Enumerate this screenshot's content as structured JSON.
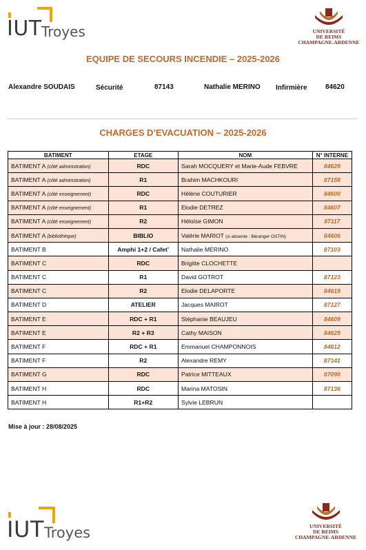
{
  "header": {
    "iut_logo_text": "IUT",
    "iut_city": "Troyes",
    "university_line1": "UNIVERSITÉ",
    "university_line2": "DE REIMS",
    "university_line3": "CHAMPAGNE-ARDENNE"
  },
  "section1": {
    "title": "EQUIPE DE SECOURS INCENDIE – 2025-2026"
  },
  "contacts": [
    {
      "name": "Alexandre SOUDAIS",
      "role": "Sécurité",
      "phone": "87143"
    },
    {
      "name": "Nathalie MERINO",
      "role": "Infirmière",
      "phone": "84620"
    }
  ],
  "section2": {
    "title": "CHARGES D’EVACUATION – 2025-2026"
  },
  "table": {
    "headers": [
      "BATIMENT",
      "ETAGE",
      "NOM",
      "N° INTERNE"
    ],
    "rows": [
      {
        "bat": "BATIMENT A",
        "sub": "(côté administration)",
        "etage": "RDC",
        "nom": "Sarah MOCQUERY et Marie-Aude FEBVRE",
        "note": "",
        "num": "84629"
      },
      {
        "bat": "BATIMENT A",
        "sub": "(côté administration)",
        "etage": "R1",
        "nom": "Brahim MACHKOURI",
        "note": "",
        "num": "87158"
      },
      {
        "bat": "BATIMENT A",
        "sub": "(côté enseignement)",
        "etage": "RDC",
        "nom": "Hélène COUTURIER",
        "note": "",
        "num": "84600"
      },
      {
        "bat": "BATIMENT A",
        "sub": "(côté enseignement)",
        "etage": "R1",
        "nom": "Elodie DETREZ",
        "note": "",
        "num": "84607"
      },
      {
        "bat": "BATIMENT A",
        "sub": "(côté enseignement)",
        "etage": "R2",
        "nom": "Héloïse GIMON",
        "note": "",
        "num": "87117"
      },
      {
        "bat": "BATIMENT A",
        "sub": "(bibliothèque)",
        "etage": "BIBLIO",
        "nom": "Valérie MARIOT",
        "note": "(si absente : Béranger OSTIN)",
        "num": "84606"
      },
      {
        "bat": "BATIMENT B",
        "sub": "",
        "etage": "Amphi 1+2 / Cafet’",
        "nom": "Nathalie MERINO",
        "note": "",
        "num": "87103"
      },
      {
        "bat": "BATIMENT C",
        "sub": "",
        "etage": "RDC",
        "nom": "Brigitte CLOCHETTE",
        "note": "",
        "num": ""
      },
      {
        "bat": "BATIMENT C",
        "sub": "",
        "etage": "R1",
        "nom": "David GOTROT",
        "note": "",
        "num": "87123"
      },
      {
        "bat": "BATIMENT C",
        "sub": "",
        "etage": "R2",
        "nom": "Elodie DELAPORTE",
        "note": "",
        "num": "84619"
      },
      {
        "bat": "BATIMENT D",
        "sub": "",
        "etage": "ATELIER",
        "nom": "Jacques MAIROT",
        "note": "",
        "num": "87127"
      },
      {
        "bat": "BATIMENT E",
        "sub": "",
        "etage": "RDC + R1",
        "nom": "Stéphanie BEAUJEU",
        "note": "",
        "num": "84609"
      },
      {
        "bat": "BATIMENT E",
        "sub": "",
        "etage": "R2 + R3",
        "nom": "Cathy MAISON",
        "note": "",
        "num": "84625"
      },
      {
        "bat": "BATIMENT F",
        "sub": "",
        "etage": "RDC + R1",
        "nom": "Emmanuel CHAMPONNOIS",
        "note": "",
        "num": "84612"
      },
      {
        "bat": "BATIMENT F",
        "sub": "",
        "etage": "R2",
        "nom": "Alexandre REMY",
        "note": "",
        "num": "87141"
      },
      {
        "bat": "BATIMENT G",
        "sub": "",
        "etage": "RDC",
        "nom": "Patrice MITTEAUX",
        "note": "",
        "num": "87090"
      },
      {
        "bat": "BATIMENT H",
        "sub": "",
        "etage": "RDC",
        "nom": "Marina MATOSIN",
        "note": "",
        "num": "87136"
      },
      {
        "bat": "BATIMENT H",
        "sub": "",
        "etage": "R1+R2",
        "nom": "Sylvie LEBRUN",
        "note": "",
        "num": ""
      }
    ]
  },
  "footer": {
    "update_text": "Mise à jour : 28/08/2025"
  },
  "colors": {
    "accent": "#c0692a",
    "highlight": "#fbe4d5",
    "logo_orange": "#f0a500"
  }
}
